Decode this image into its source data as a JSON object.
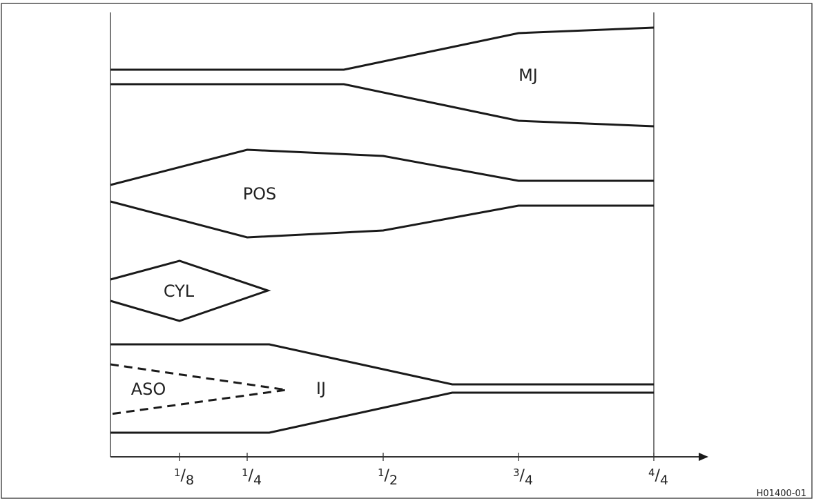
{
  "labels": {
    "mj": "MJ",
    "pos": "POS",
    "cyl": "CYL",
    "aso": "ASO",
    "ij": "IJ"
  },
  "x_axis": {
    "ticks": [
      {
        "numerator": "1",
        "denominator": "8"
      },
      {
        "numerator": "1",
        "denominator": "4"
      },
      {
        "numerator": "1",
        "denominator": "2"
      },
      {
        "numerator": "3",
        "denominator": "4"
      },
      {
        "numerator": "4",
        "denominator": "4"
      }
    ]
  },
  "figure_id": "H01400-01"
}
